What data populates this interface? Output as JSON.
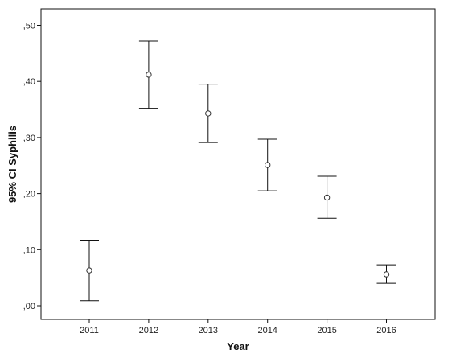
{
  "chart_data": {
    "type": "errorbar",
    "xlabel": "Year",
    "ylabel": "95% CI Syphilis",
    "ylim": [
      -0.025,
      0.53
    ],
    "yticks": [
      0.0,
      0.1,
      0.2,
      0.3,
      0.4,
      0.5
    ],
    "ytick_labels": [
      ",00",
      ",10",
      ",20",
      ",30",
      ",40",
      ",50"
    ],
    "categories": [
      "2011",
      "2012",
      "2013",
      "2014",
      "2015",
      "2016"
    ],
    "series": [
      {
        "mean": [
          0.063,
          0.412,
          0.343,
          0.251,
          0.193,
          0.056
        ],
        "lower": [
          0.009,
          0.352,
          0.291,
          0.205,
          0.156,
          0.04
        ],
        "upper": [
          0.117,
          0.472,
          0.395,
          0.297,
          0.231,
          0.073
        ]
      }
    ],
    "grid": false,
    "legend": "none",
    "colors": {
      "marker": "#333333",
      "errorbar": "#111111",
      "frame": "#111111",
      "background": "#ffffff"
    }
  }
}
